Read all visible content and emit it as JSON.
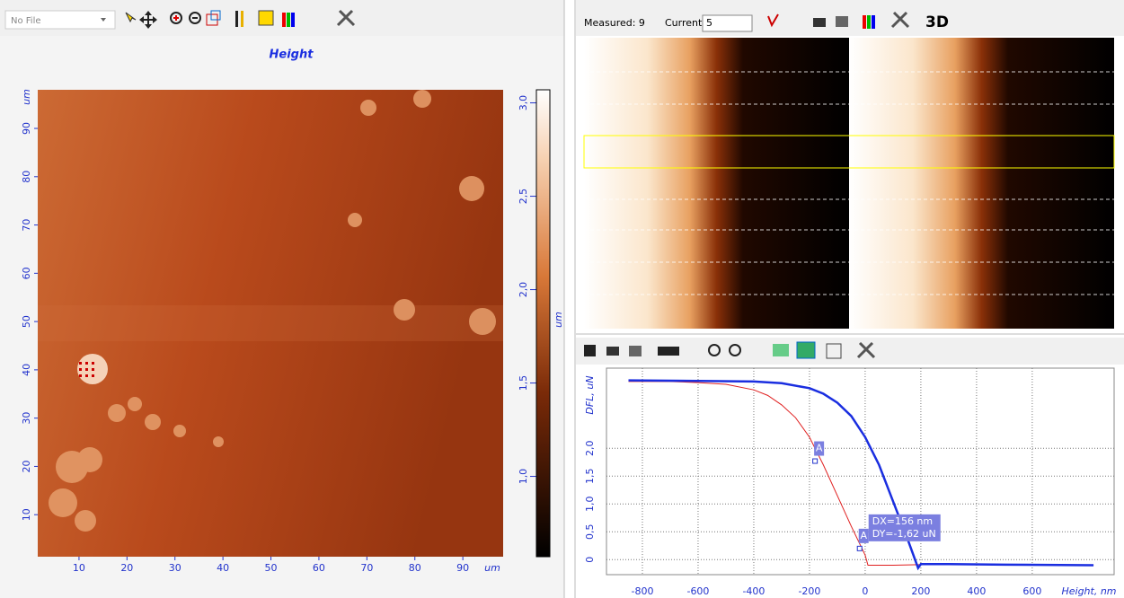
{
  "left_toolbar": {
    "file": "No File"
  },
  "height_map": {
    "title": "Height",
    "x_unit": "um",
    "y_unit": "um",
    "xlim": [
      1.4,
      98.4
    ],
    "ylim": [
      1.3,
      98
    ],
    "xticks": [
      10,
      20,
      30,
      40,
      50,
      60,
      70,
      80,
      90
    ],
    "yticks": [
      10,
      20,
      30,
      40,
      50,
      60,
      70,
      80,
      90
    ],
    "colorbar": {
      "unit": "um",
      "lim": [
        0.57,
        3.07
      ],
      "ticks": [
        {
          "value": 1,
          "label": "1,0"
        },
        {
          "value": 1.5,
          "label": "1,5"
        },
        {
          "value": 2,
          "label": "2,0"
        },
        {
          "value": 2.5,
          "label": "2,5"
        },
        {
          "value": 3,
          "label": "3,0"
        }
      ]
    }
  },
  "right_toolbar": {
    "measured": "Measured: 9",
    "current_label": "Current:",
    "current_value": "5",
    "view3d": "3D"
  },
  "force_curve": {
    "y_label": "DFL, uN",
    "x_label": "Height, nm",
    "xlim": [
      -929,
      894
    ],
    "ylim": [
      -0.27,
      3.44
    ],
    "xticks": [
      -800,
      -600,
      -400,
      -200,
      0,
      200,
      400,
      600
    ],
    "yticks": [
      0,
      {
        "value": 0.5,
        "label": "0,5"
      },
      {
        "value": 1,
        "label": "1,0"
      },
      {
        "value": 1.5,
        "label": "1,5"
      },
      {
        "value": 2,
        "label": "2,0"
      }
    ],
    "grid": true,
    "series": [
      {
        "color": "#e02020",
        "width": 1,
        "x": [
          -850,
          -700,
          -600,
          -500,
          -400,
          -350,
          -300,
          -250,
          -200,
          -150,
          -100,
          -50,
          0,
          10,
          50,
          100,
          200,
          400,
          600,
          820
        ],
        "values": [
          3.2,
          3.2,
          3.18,
          3.15,
          3.05,
          2.95,
          2.78,
          2.55,
          2.2,
          1.7,
          1.15,
          0.6,
          0.08,
          -0.1,
          -0.1,
          -0.1,
          -0.09,
          -0.09,
          -0.1,
          -0.1
        ]
      },
      {
        "color": "#1a2ee0",
        "width": 2.5,
        "x": [
          -850,
          -600,
          -400,
          -300,
          -200,
          -150,
          -100,
          -50,
          0,
          50,
          100,
          150,
          190,
          200,
          300,
          500,
          820
        ],
        "values": [
          3.22,
          3.21,
          3.2,
          3.17,
          3.08,
          2.98,
          2.82,
          2.58,
          2.2,
          1.7,
          1.05,
          0.4,
          -0.15,
          -0.08,
          -0.08,
          -0.09,
          -0.1
        ]
      }
    ],
    "markers": [
      {
        "label": "A",
        "x": -180,
        "y": 1.77
      },
      {
        "label": "A",
        "x": -20,
        "y": 0.2
      }
    ],
    "annotation": {
      "dx": "DX=156 nm",
      "dy": "DY=-1,62 uN"
    }
  }
}
